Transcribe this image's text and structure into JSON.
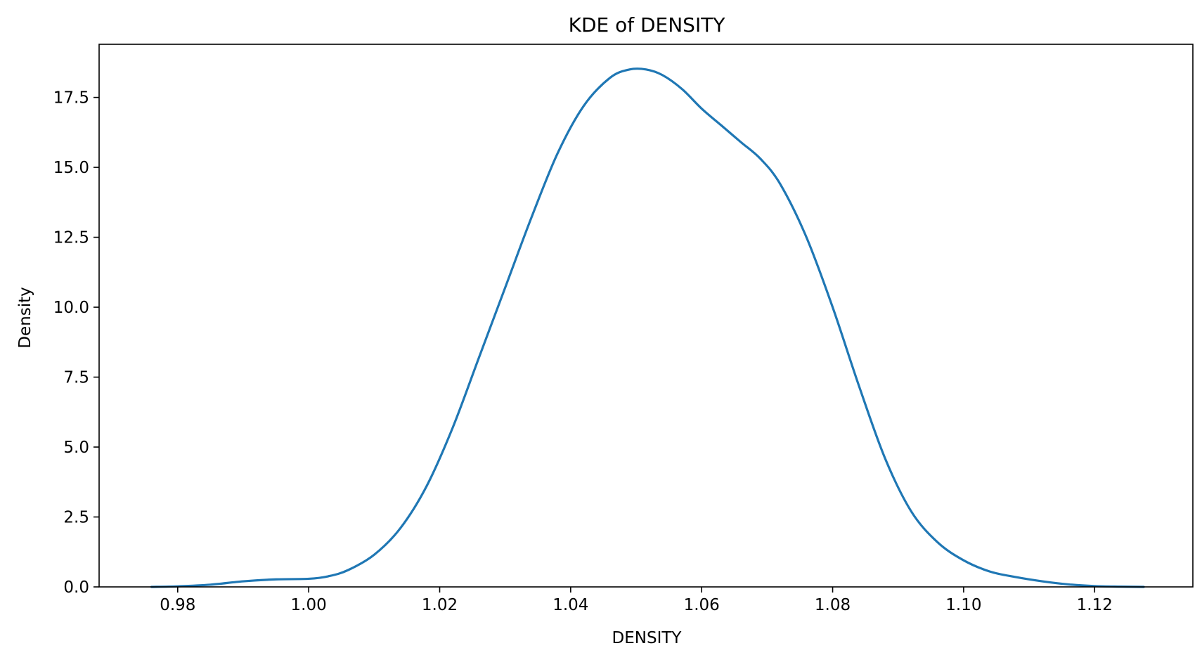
{
  "chart_data": {
    "type": "line",
    "title": "KDE of DENSITY",
    "xlabel": "DENSITY",
    "ylabel": "Density",
    "xlim": [
      0.968,
      1.135
    ],
    "ylim": [
      0,
      19.4
    ],
    "grid": false,
    "x_ticks": [
      0.98,
      1.0,
      1.02,
      1.04,
      1.06,
      1.08,
      1.1,
      1.12
    ],
    "x_tick_labels": [
      "0.98",
      "1.00",
      "1.02",
      "1.04",
      "1.06",
      "1.08",
      "1.10",
      "1.12"
    ],
    "y_ticks": [
      0,
      2.5,
      5,
      7.5,
      10,
      12.5,
      15,
      17.5
    ],
    "y_tick_labels": [
      "0.0",
      "2.5",
      "5.0",
      "7.5",
      "10.0",
      "12.5",
      "15.0",
      "17.5"
    ],
    "series": [
      {
        "color": "#1f77b4",
        "x": [
          0.976,
          0.98,
          0.985,
          0.99,
          0.995,
          1.0,
          1.003,
          1.006,
          1.01,
          1.014,
          1.018,
          1.022,
          1.026,
          1.03,
          1.034,
          1.038,
          1.042,
          1.046,
          1.049,
          1.0515,
          1.054,
          1.057,
          1.06,
          1.063,
          1.066,
          1.069,
          1.072,
          1.076,
          1.08,
          1.084,
          1.088,
          1.092,
          1.096,
          1.1,
          1.104,
          1.108,
          1.112,
          1.116,
          1.12,
          1.124,
          1.1275
        ],
        "y": [
          0.0,
          0.02,
          0.08,
          0.2,
          0.27,
          0.29,
          0.38,
          0.6,
          1.15,
          2.1,
          3.6,
          5.7,
          8.2,
          10.7,
          13.2,
          15.5,
          17.2,
          18.2,
          18.5,
          18.5,
          18.3,
          17.8,
          17.1,
          16.5,
          15.9,
          15.3,
          14.4,
          12.5,
          10.0,
          7.2,
          4.6,
          2.7,
          1.6,
          0.95,
          0.55,
          0.35,
          0.2,
          0.09,
          0.03,
          0.01,
          0.0
        ]
      }
    ]
  }
}
